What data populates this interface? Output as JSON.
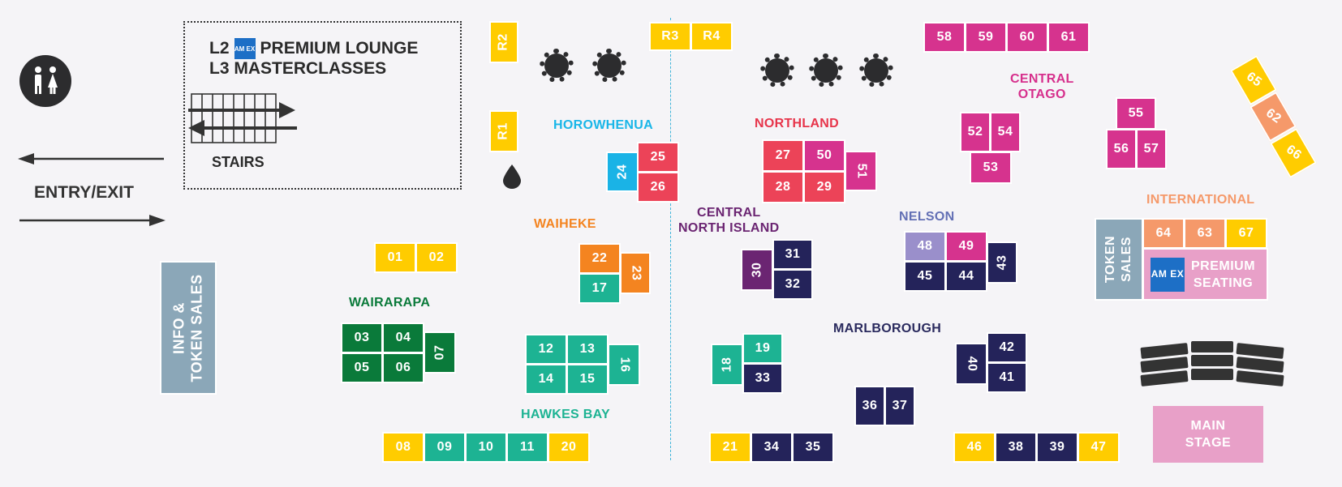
{
  "labels": {
    "lounge_l2": "L2",
    "lounge_premium": "PREMIUM LOUNGE",
    "lounge_l3": "L3 MASTERCLASSES",
    "amex_logo_text": "AM EX",
    "stairs": "STAIRS",
    "entry_exit": "ENTRY/EXIT",
    "info_token": "INFO &\nTOKEN SALES",
    "token_sales": "TOKEN\nSALES",
    "premium_seating": "PREMIUM\nSEATING",
    "main_stage": "MAIN\nSTAGE"
  },
  "regions": {
    "horowhenua": "HOROWHENUA",
    "northland": "NORTHLAND",
    "central_otago": "CENTRAL\nOTAGO",
    "waiheke": "WAIHEKE",
    "central_north_island": "CENTRAL\nNORTH ISLAND",
    "nelson": "NELSON",
    "international": "INTERNATIONAL",
    "wairarapa": "WAIRARAPA",
    "marlborough": "MARLBOROUGH",
    "hawkes_bay": "HAWKES BAY"
  },
  "colors": {
    "yellow": "#ffcc00",
    "magenta": "#d6338e",
    "red": "#ec4358",
    "blue": "#1ab3e6",
    "orange": "#f48420",
    "teal": "#1db393",
    "navy": "#24235a",
    "purple": "#6b2572",
    "lavender": "#9a8fcb",
    "peach": "#f5996a",
    "green": "#0a7a3a",
    "slate": "#8ba7b8",
    "pink": "#e8a0c8",
    "amex": "#1d6fc6",
    "northland_text": "#e7344a",
    "central_otago_text": "#d62f8c",
    "horowhenua_text": "#19b6e8",
    "waiheke_text": "#f48420",
    "cni_text": "#6b2572",
    "nelson_text": "#6370b5",
    "international_text": "#f5996a",
    "wairarapa_text": "#0a7a3a",
    "marlborough_text": "#2a2a5e",
    "hawkes_text": "#1db393"
  },
  "icons": [
    "restroom-icon",
    "amex-logo",
    "stairs-icon",
    "table-icon",
    "water-drop-icon",
    "arrow-left-icon",
    "arrow-right-icon"
  ],
  "stalls": {
    "R2": "R2",
    "R3": "R3",
    "R4": "R4",
    "R1": "R1",
    "s58": "58",
    "s59": "59",
    "s60": "60",
    "s61": "61",
    "s65": "65",
    "s62": "62",
    "s66": "66",
    "s55": "55",
    "s56": "56",
    "s57": "57",
    "s52": "52",
    "s54": "54",
    "s53": "53",
    "s24": "24",
    "s25": "25",
    "s26": "26",
    "s27": "27",
    "s50": "50",
    "s28": "28",
    "s29": "29",
    "s51": "51",
    "s48": "48",
    "s49": "49",
    "s43": "43",
    "s45": "45",
    "s44": "44",
    "s64": "64",
    "s63": "63",
    "s67": "67",
    "s01": "01",
    "s02": "02",
    "s22": "22",
    "s23": "23",
    "s17": "17",
    "s30": "30",
    "s31": "31",
    "s32": "32",
    "s03": "03",
    "s04": "04",
    "s05": "05",
    "s06": "06",
    "s07": "07",
    "s12": "12",
    "s13": "13",
    "s14": "14",
    "s15": "15",
    "s16": "16",
    "s18": "18",
    "s19": "19",
    "s33": "33",
    "s40": "40",
    "s42": "42",
    "s41": "41",
    "s36": "36",
    "s37": "37",
    "s08": "08",
    "s09": "09",
    "s10": "10",
    "s11": "11",
    "s20": "20",
    "s21": "21",
    "s34": "34",
    "s35": "35",
    "s46": "46",
    "s38": "38",
    "s39": "39",
    "s47": "47"
  }
}
